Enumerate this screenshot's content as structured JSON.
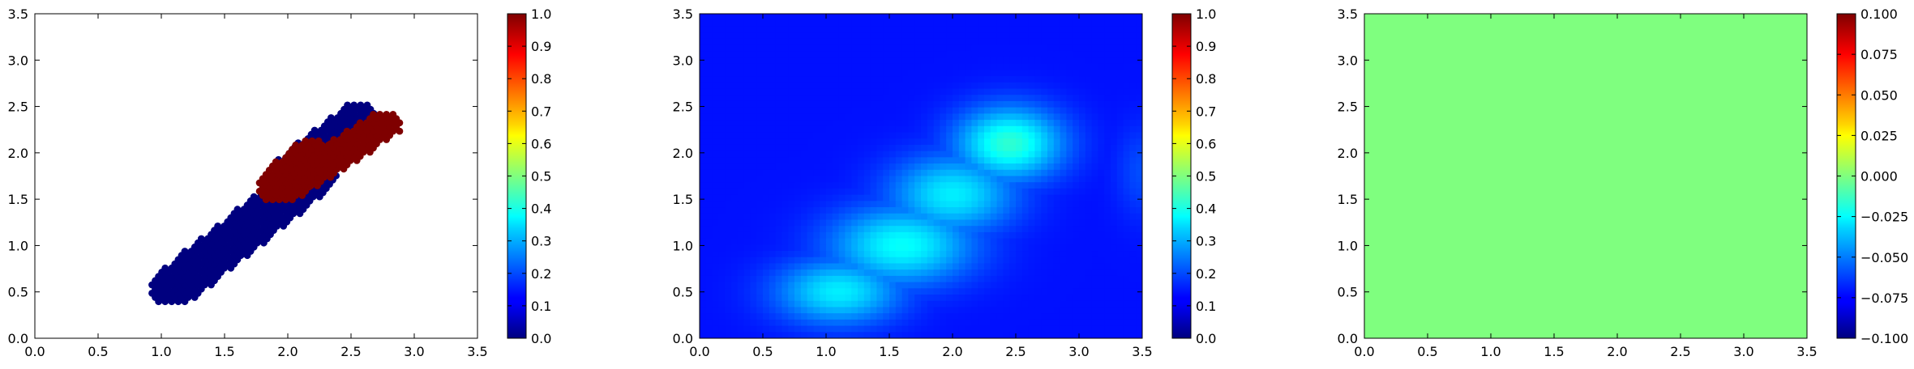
{
  "chart_data": [
    {
      "type": "scatter",
      "title": "",
      "xlabel": "",
      "ylabel": "",
      "xlim": [
        0,
        3.5
      ],
      "ylim": [
        0,
        3.5
      ],
      "xticks": [
        "0.0",
        "0.5",
        "1.0",
        "1.5",
        "2.0",
        "2.5",
        "3.0",
        "3.5"
      ],
      "yticks": [
        "0.0",
        "0.5",
        "1.0",
        "1.5",
        "2.0",
        "2.5",
        "3.0",
        "3.5"
      ],
      "colormap": "jet",
      "series": [
        {
          "value": 0,
          "color": "#00007f",
          "regions": [
            {
              "x0": 1.1,
              "y0": 0.55,
              "x1": 2.2,
              "y1": 1.75,
              "band": 0.2
            },
            {
              "x0": 2.05,
              "y0": 1.85,
              "x1": 2.55,
              "y1": 2.4,
              "band": 0.15
            }
          ]
        },
        {
          "value": 1,
          "color": "#7f0000",
          "regions": [
            {
              "x0": 1.95,
              "y0": 1.65,
              "x1": 2.2,
              "y1": 1.95,
              "band": 0.2
            },
            {
              "x0": 2.15,
              "y0": 1.75,
              "x1": 2.75,
              "y1": 2.3,
              "band": 0.15
            }
          ]
        }
      ],
      "colorbar": {
        "range": [
          0,
          1
        ],
        "ticks": [
          "0.0",
          "0.1",
          "0.2",
          "0.3",
          "0.4",
          "0.5",
          "0.6",
          "0.7",
          "0.8",
          "0.9",
          "1.0"
        ]
      }
    },
    {
      "type": "heatmap",
      "title": "",
      "xlabel": "",
      "ylabel": "",
      "xlim": [
        0,
        3.5
      ],
      "ylim": [
        0,
        3.5
      ],
      "xticks": [
        "0.0",
        "0.5",
        "1.0",
        "1.5",
        "2.0",
        "2.5",
        "3.0",
        "3.5"
      ],
      "yticks": [
        "0.0",
        "0.5",
        "1.0",
        "1.5",
        "2.0",
        "2.5",
        "3.0",
        "3.5"
      ],
      "colormap": "jet",
      "background_value": 0.14,
      "bumps": [
        {
          "x": 1.1,
          "y": 0.5,
          "value": 0.36,
          "sx": 0.35,
          "sy": 0.25
        },
        {
          "x": 1.6,
          "y": 1.0,
          "value": 0.38,
          "sx": 0.4,
          "sy": 0.3
        },
        {
          "x": 2.0,
          "y": 1.55,
          "value": 0.36,
          "sx": 0.35,
          "sy": 0.3
        },
        {
          "x": 2.45,
          "y": 2.1,
          "value": 0.42,
          "sx": 0.3,
          "sy": 0.28
        },
        {
          "x": 3.5,
          "y": 1.8,
          "value": 0.2,
          "sx": 0.15,
          "sy": 0.35
        }
      ],
      "colorbar": {
        "range": [
          0,
          1
        ],
        "ticks": [
          "0.0",
          "0.1",
          "0.2",
          "0.3",
          "0.4",
          "0.5",
          "0.6",
          "0.7",
          "0.8",
          "0.9",
          "1.0"
        ]
      }
    },
    {
      "type": "heatmap",
      "title": "",
      "xlabel": "",
      "ylabel": "",
      "xlim": [
        0,
        3.5
      ],
      "ylim": [
        0,
        3.5
      ],
      "xticks": [
        "0.0",
        "0.5",
        "1.0",
        "1.5",
        "2.0",
        "2.5",
        "3.0",
        "3.5"
      ],
      "yticks": [
        "0.0",
        "0.5",
        "1.0",
        "1.5",
        "2.0",
        "2.5",
        "3.0",
        "3.5"
      ],
      "colormap": "jet",
      "uniform_value": 0.0,
      "uniform_color": "#7fff7f",
      "colorbar": {
        "range": [
          -0.1,
          0.1
        ],
        "ticks": [
          "−0.100",
          "−0.075",
          "−0.050",
          "−0.025",
          "0.000",
          "0.025",
          "0.050",
          "0.075",
          "0.100"
        ]
      }
    }
  ]
}
